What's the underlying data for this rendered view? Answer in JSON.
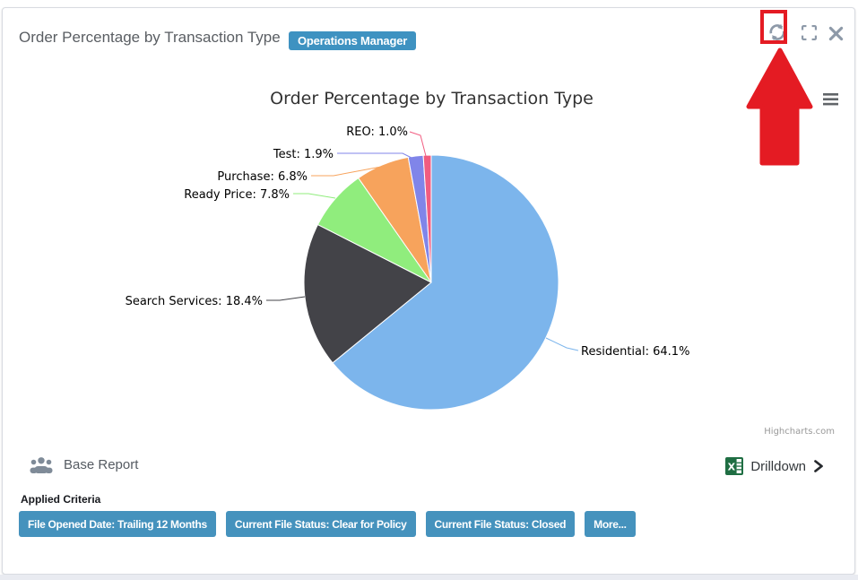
{
  "header": {
    "title": "Order Percentage by Transaction Type",
    "badge": "Operations Manager"
  },
  "icons": {
    "refresh": "circular-arrows",
    "expand": "corner-brackets",
    "close": "x-mark",
    "chart_menu": "hamburger",
    "base_report": "users-group",
    "drilldown": "excel-workbook",
    "drilldown_chevron": "chevron-right"
  },
  "chart": {
    "credits": "Highcharts.com"
  },
  "chart_data": {
    "type": "pie",
    "title": "Order Percentage by Transaction Type",
    "categories": [
      "Residential",
      "Search Services",
      "Ready Price",
      "Purchase",
      "Test",
      "REO"
    ],
    "values": [
      64.1,
      18.4,
      7.8,
      6.8,
      1.9,
      1.0
    ],
    "value_suffix": "%",
    "label_format": "{name}: {value}%",
    "colors": [
      "#7cb5ec",
      "#434348",
      "#90ed7d",
      "#f7a35c",
      "#8085e9",
      "#f15c80"
    ],
    "start_angle_deg": 0,
    "legend": false,
    "grid": false
  },
  "annotation": {
    "highlighted_control": "refresh",
    "arrow_color": "#e41b23"
  },
  "footer": {
    "base_report_label": "Base Report",
    "drilldown_label": "Drilldown",
    "applied_criteria_label": "Applied Criteria",
    "criteria": [
      "File Opened Date: Trailing 12 Months",
      "Current File Status: Clear for Policy",
      "Current File Status: Closed",
      "More..."
    ]
  },
  "colors": {
    "badge_blue": "#3e92c1",
    "button_blue": "#4592bd",
    "highlight_red": "#e41b23",
    "icon_gray": "#8d99a8"
  }
}
